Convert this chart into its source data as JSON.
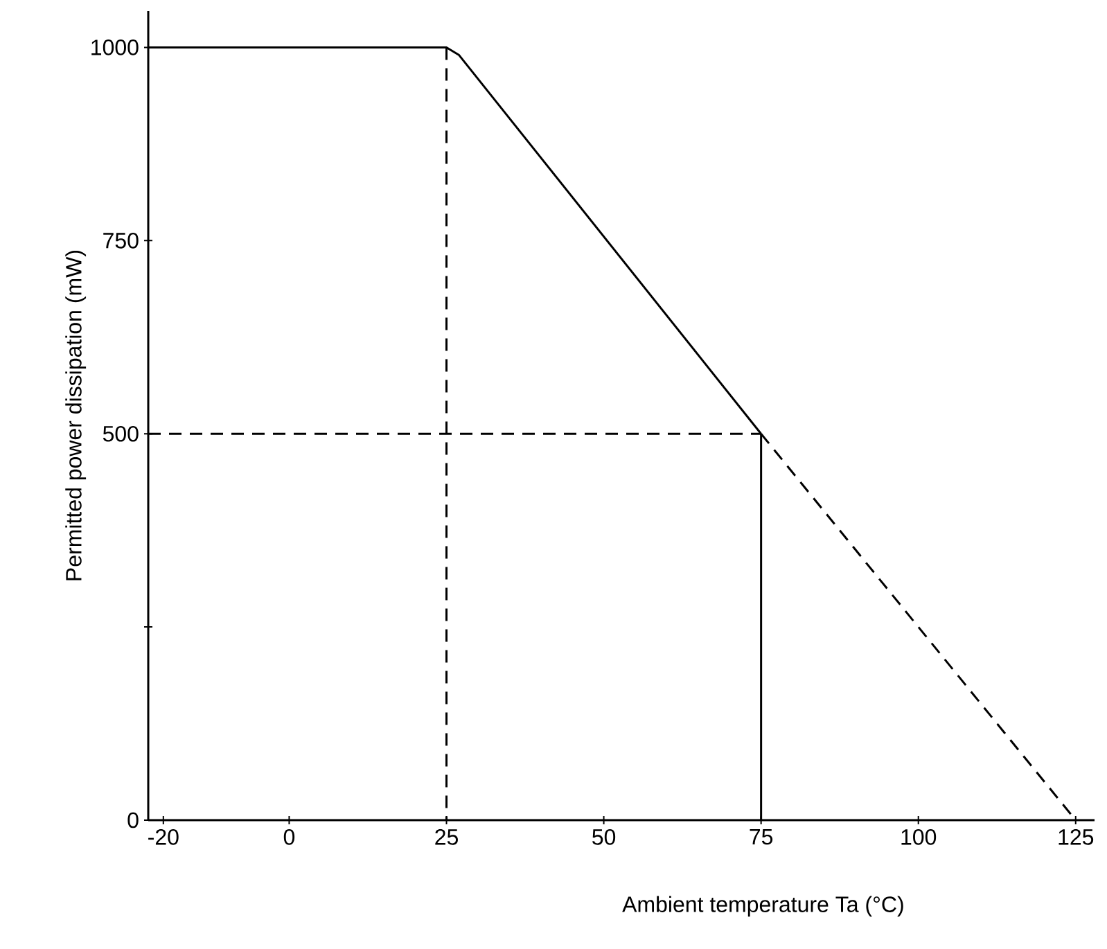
{
  "chart_data": {
    "type": "line",
    "xlabel": "Ambient temperature Ta (°C)",
    "ylabel": "Permitted power dissipation (mW)",
    "xlim": [
      -22.4,
      128
    ],
    "ylim": [
      0,
      1047
    ],
    "xticks": [
      -20,
      0,
      25,
      50,
      75,
      100,
      125
    ],
    "yticks": [
      0,
      {
        "value": 250,
        "label": null
      },
      500,
      750,
      1000
    ],
    "series": [
      {
        "color": "#000000",
        "line_style": "solid",
        "x": [
          -22.4,
          25,
          27,
          75
        ],
        "values": [
          1000,
          1000,
          990,
          500
        ]
      },
      {
        "color": "#000000",
        "line_style": "dashed",
        "x": [
          75,
          125
        ],
        "values": [
          500,
          0
        ]
      },
      {
        "color": "#000000",
        "line_style": "solid",
        "x": [
          75,
          75
        ],
        "values": [
          500,
          0
        ]
      },
      {
        "color": "#000000",
        "line_style": "dashed",
        "x": [
          25,
          25
        ],
        "values": [
          1000,
          0
        ]
      },
      {
        "color": "#000000",
        "line_style": "dashed",
        "x": [
          -22.4,
          75
        ],
        "values": [
          500,
          500
        ]
      }
    ]
  }
}
